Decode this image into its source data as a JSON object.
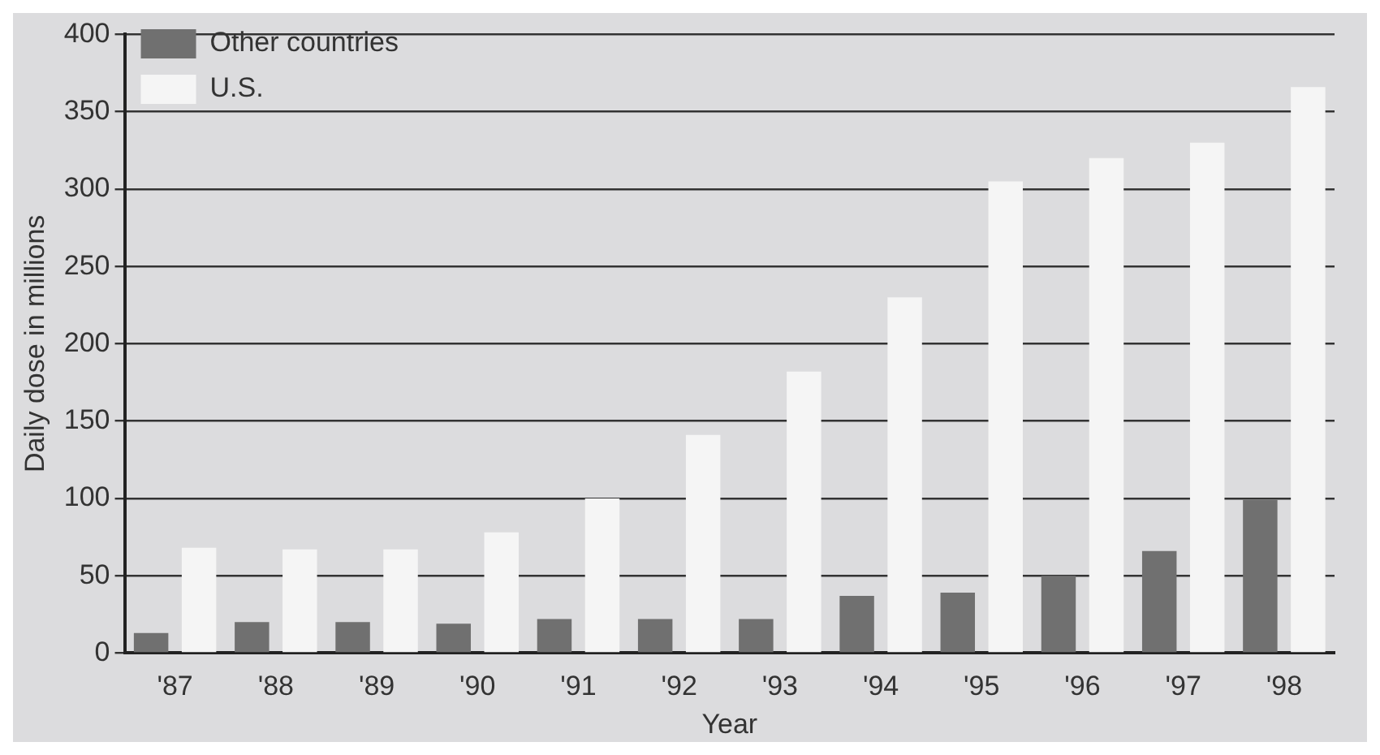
{
  "chart_data": {
    "type": "bar",
    "xlabel": "Year",
    "ylabel": "Daily dose in millions",
    "categories": [
      "'87",
      "'88",
      "'89",
      "'90",
      "'91",
      "'92",
      "'93",
      "'94",
      "'95",
      "'96",
      "'97",
      "'98"
    ],
    "series": [
      {
        "name": "Other countries",
        "color": "#707070",
        "values": [
          13,
          20,
          20,
          19,
          22,
          22,
          22,
          37,
          39,
          50,
          66,
          99
        ]
      },
      {
        "name": "U.S.",
        "color": "#f5f5f5",
        "values": [
          68,
          67,
          67,
          78,
          100,
          141,
          182,
          230,
          305,
          320,
          330,
          366
        ]
      }
    ],
    "ylim": [
      0,
      400
    ],
    "yticks": [
      0,
      50,
      100,
      150,
      200,
      250,
      300,
      350,
      400
    ],
    "grid": "y",
    "legend": "top left"
  }
}
